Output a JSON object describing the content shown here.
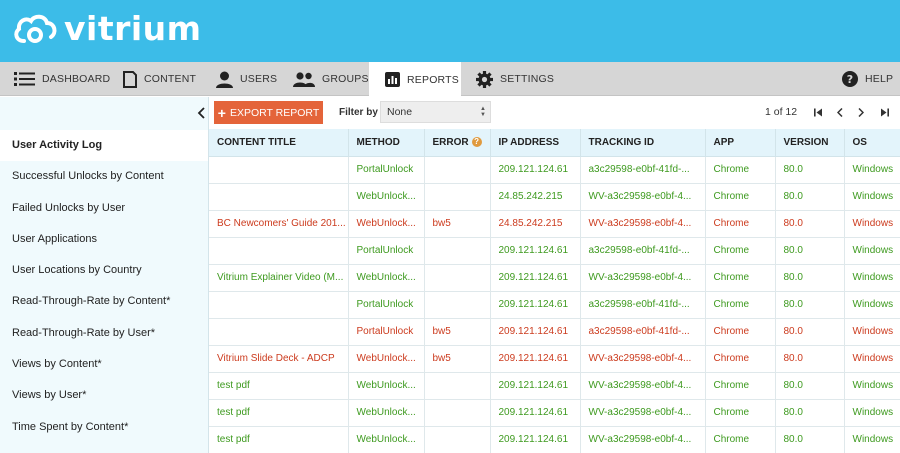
{
  "brand": {
    "name": "vitrium"
  },
  "nav": {
    "items": [
      {
        "label": "DASHBOARD",
        "icon": "list-icon"
      },
      {
        "label": "CONTENT",
        "icon": "document-icon"
      },
      {
        "label": "USERS",
        "icon": "user-icon"
      },
      {
        "label": "GROUPS",
        "icon": "group-icon"
      },
      {
        "label": "REPORTS",
        "icon": "bar-chart-icon",
        "active": true
      },
      {
        "label": "SETTINGS",
        "icon": "gear-icon"
      }
    ],
    "help": {
      "label": "HELP",
      "icon": "help-icon"
    }
  },
  "sidebar": {
    "items": [
      {
        "label": "User Activity Log",
        "active": true
      },
      {
        "label": "Successful Unlocks by Content"
      },
      {
        "label": "Failed Unlocks by User"
      },
      {
        "label": "User Applications"
      },
      {
        "label": "User Locations by Country"
      },
      {
        "label": "Read-Through-Rate by Content*"
      },
      {
        "label": "Read-Through-Rate by User*"
      },
      {
        "label": "Views by Content*"
      },
      {
        "label": "Views by User*"
      },
      {
        "label": "Time Spent by Content*"
      }
    ]
  },
  "toolbar": {
    "export_label": "EXPORT REPORT",
    "filter_label": "Filter by",
    "filter_value": "None",
    "page_text": "1 of 12"
  },
  "table": {
    "columns": [
      "CONTENT TITLE",
      "METHOD",
      "ERROR",
      "IP ADDRESS",
      "TRACKING ID",
      "APP",
      "VERSION",
      "OS"
    ],
    "rows": [
      {
        "status": "ok",
        "cells": [
          "",
          "PortalUnlock",
          "",
          "209.121.124.61",
          "a3c29598-e0bf-41fd-...",
          "Chrome",
          "80.0",
          "Windows"
        ]
      },
      {
        "status": "ok",
        "cells": [
          "",
          "WebUnlock...",
          "",
          "24.85.242.215",
          "WV-a3c29598-e0bf-4...",
          "Chrome",
          "80.0",
          "Windows"
        ]
      },
      {
        "status": "err",
        "cells": [
          "BC Newcomers' Guide 201...",
          "WebUnlock...",
          "bw5",
          "24.85.242.215",
          "WV-a3c29598-e0bf-4...",
          "Chrome",
          "80.0",
          "Windows"
        ]
      },
      {
        "status": "ok",
        "cells": [
          "",
          "PortalUnlock",
          "",
          "209.121.124.61",
          "a3c29598-e0bf-41fd-...",
          "Chrome",
          "80.0",
          "Windows"
        ]
      },
      {
        "status": "ok",
        "cells": [
          "Vitrium Explainer Video (M...",
          "WebUnlock...",
          "",
          "209.121.124.61",
          "WV-a3c29598-e0bf-4...",
          "Chrome",
          "80.0",
          "Windows"
        ]
      },
      {
        "status": "ok",
        "cells": [
          "",
          "PortalUnlock",
          "",
          "209.121.124.61",
          "a3c29598-e0bf-41fd-...",
          "Chrome",
          "80.0",
          "Windows"
        ]
      },
      {
        "status": "err",
        "cells": [
          "",
          "PortalUnlock",
          "bw5",
          "209.121.124.61",
          "a3c29598-e0bf-41fd-...",
          "Chrome",
          "80.0",
          "Windows"
        ]
      },
      {
        "status": "err",
        "cells": [
          "Vitrium Slide Deck - ADCP",
          "WebUnlock...",
          "bw5",
          "209.121.124.61",
          "WV-a3c29598-e0bf-4...",
          "Chrome",
          "80.0",
          "Windows"
        ]
      },
      {
        "status": "ok",
        "cells": [
          "test pdf",
          "WebUnlock...",
          "",
          "209.121.124.61",
          "WV-a3c29598-e0bf-4...",
          "Chrome",
          "80.0",
          "Windows"
        ]
      },
      {
        "status": "ok",
        "cells": [
          "test pdf",
          "WebUnlock...",
          "",
          "209.121.124.61",
          "WV-a3c29598-e0bf-4...",
          "Chrome",
          "80.0",
          "Windows"
        ]
      },
      {
        "status": "ok",
        "cells": [
          "test pdf",
          "WebUnlock...",
          "",
          "209.121.124.61",
          "WV-a3c29598-e0bf-4...",
          "Chrome",
          "80.0",
          "Windows"
        ]
      }
    ]
  },
  "colors": {
    "header_bg": "#3cbce8",
    "accent_button": "#e4643a",
    "success_text": "#3e9a1f",
    "error_text": "#cc3b1e"
  }
}
